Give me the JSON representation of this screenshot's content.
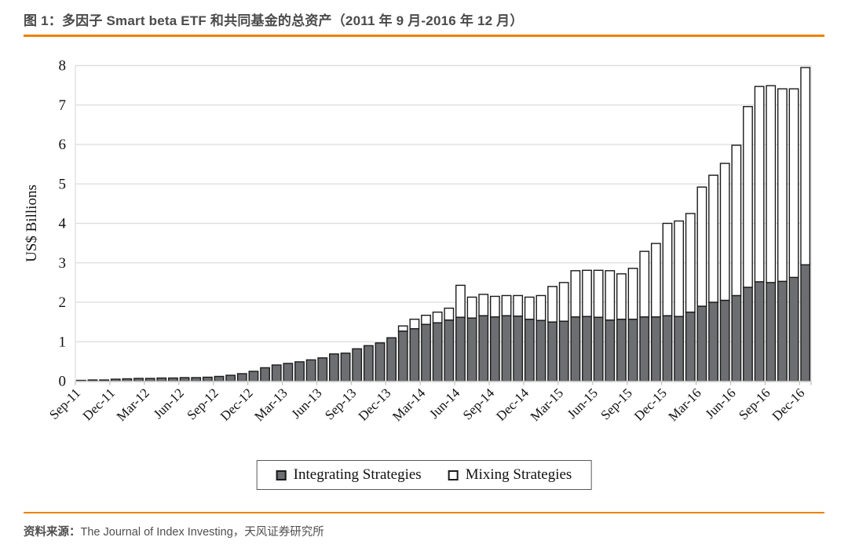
{
  "header": {
    "title": "图 1：多因子 Smart beta ETF 和共同基金的总资产（2011 年 9 月-2016 年 12 月）"
  },
  "footer": {
    "source_label": "资料来源：",
    "source_text": "The Journal of Index Investing，天风证券研究所"
  },
  "colors": {
    "accent_orange": "#ef8200",
    "bar_dark": "#6d6e71",
    "bar_light": "#ffffff",
    "bar_stroke": "#1a1a1a",
    "gridline": "#dcdcdc",
    "axis": "#bfbfbf",
    "text": "#111111"
  },
  "chart_data": {
    "type": "bar",
    "stacked": true,
    "title": "",
    "xlabel": "",
    "ylabel": "US$ Billions",
    "ylim": [
      0,
      8
    ],
    "yticks": [
      0,
      1,
      2,
      3,
      4,
      5,
      6,
      7,
      8
    ],
    "grid": "horizontal",
    "legend_position": "bottom",
    "x_tick_interval": 3,
    "categories": [
      "Sep-11",
      "Oct-11",
      "Nov-11",
      "Dec-11",
      "Jan-12",
      "Feb-12",
      "Mar-12",
      "Apr-12",
      "May-12",
      "Jun-12",
      "Jul-12",
      "Aug-12",
      "Sep-12",
      "Oct-12",
      "Nov-12",
      "Dec-12",
      "Jan-13",
      "Feb-13",
      "Mar-13",
      "Apr-13",
      "May-13",
      "Jun-13",
      "Jul-13",
      "Aug-13",
      "Sep-13",
      "Oct-13",
      "Nov-13",
      "Dec-13",
      "Jan-14",
      "Feb-14",
      "Mar-14",
      "Apr-14",
      "May-14",
      "Jun-14",
      "Jul-14",
      "Aug-14",
      "Sep-14",
      "Oct-14",
      "Nov-14",
      "Dec-14",
      "Jan-15",
      "Feb-15",
      "Mar-15",
      "Apr-15",
      "May-15",
      "Jun-15",
      "Jul-15",
      "Aug-15",
      "Sep-15",
      "Oct-15",
      "Nov-15",
      "Dec-15",
      "Jan-16",
      "Feb-16",
      "Mar-16",
      "Apr-16",
      "May-16",
      "Jun-16",
      "Jul-16",
      "Aug-16",
      "Sep-16",
      "Oct-16",
      "Nov-16",
      "Dec-16"
    ],
    "series": [
      {
        "name": "Integrating Strategies",
        "color": "#6d6e71",
        "values": [
          0.02,
          0.03,
          0.03,
          0.05,
          0.06,
          0.07,
          0.07,
          0.08,
          0.08,
          0.09,
          0.09,
          0.1,
          0.12,
          0.15,
          0.19,
          0.25,
          0.34,
          0.41,
          0.45,
          0.49,
          0.54,
          0.59,
          0.69,
          0.71,
          0.82,
          0.9,
          0.97,
          1.1,
          1.27,
          1.33,
          1.44,
          1.48,
          1.55,
          1.62,
          1.6,
          1.66,
          1.63,
          1.66,
          1.65,
          1.57,
          1.54,
          1.5,
          1.52,
          1.63,
          1.64,
          1.62,
          1.55,
          1.57,
          1.57,
          1.63,
          1.63,
          1.66,
          1.64,
          1.75,
          1.9,
          2.0,
          2.05,
          2.17,
          2.38,
          2.52,
          2.5,
          2.53,
          2.63,
          2.95
        ]
      },
      {
        "name": "Mixing Strategies",
        "color": "#ffffff",
        "values": [
          0,
          0,
          0,
          0,
          0,
          0,
          0,
          0,
          0,
          0,
          0,
          0,
          0,
          0,
          0,
          0,
          0,
          0,
          0,
          0,
          0,
          0,
          0,
          0,
          0,
          0,
          0,
          0,
          0.13,
          0.24,
          0.23,
          0.27,
          0.3,
          0.81,
          0.53,
          0.54,
          0.52,
          0.51,
          0.52,
          0.56,
          0.63,
          0.9,
          0.98,
          1.17,
          1.17,
          1.19,
          1.25,
          1.15,
          1.29,
          1.66,
          1.86,
          2.34,
          2.42,
          2.5,
          3.02,
          3.22,
          3.47,
          3.81,
          4.58,
          4.95,
          4.99,
          4.88,
          4.78,
          5.0
        ]
      }
    ]
  }
}
